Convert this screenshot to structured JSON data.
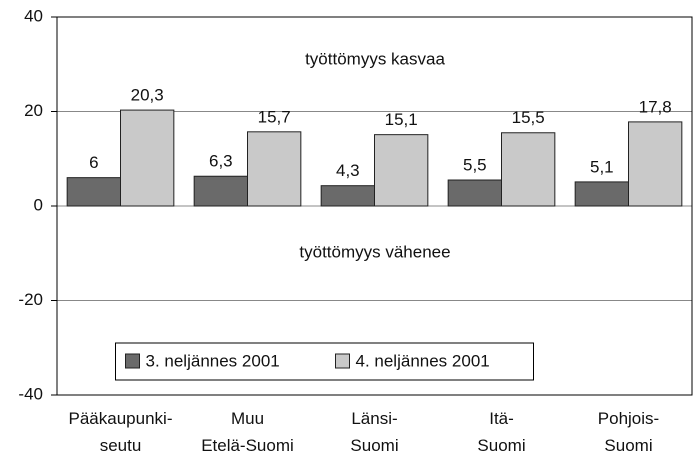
{
  "chart_data": {
    "type": "bar",
    "categories": [
      "Pääkaupunki-\nseutu",
      "Muu\nEtelä-Suomi",
      "Länsi-\nSuomi",
      "Itä-\nSuomi",
      "Pohjois-\nSuomi"
    ],
    "series": [
      {
        "name": "3. neljännes 2001",
        "color": "#6a6a6a",
        "values": [
          6,
          6.3,
          4.3,
          5.5,
          5.1
        ],
        "value_labels": [
          "6",
          "6,3",
          "4,3",
          "5,5",
          "5,1"
        ]
      },
      {
        "name": "4. neljännes 2001",
        "color": "#c9c9c9",
        "values": [
          20.3,
          15.7,
          15.1,
          15.5,
          17.8
        ],
        "value_labels": [
          "20,3",
          "15,7",
          "15,1",
          "15,5",
          "17,8"
        ]
      }
    ],
    "annotations": [
      "työttömyys kasvaa",
      "työttömyys vähenee"
    ],
    "ylim": [
      -40,
      40
    ],
    "yticks": [
      -40,
      -20,
      0,
      20,
      40
    ],
    "grid": true,
    "legend": "lower center"
  }
}
